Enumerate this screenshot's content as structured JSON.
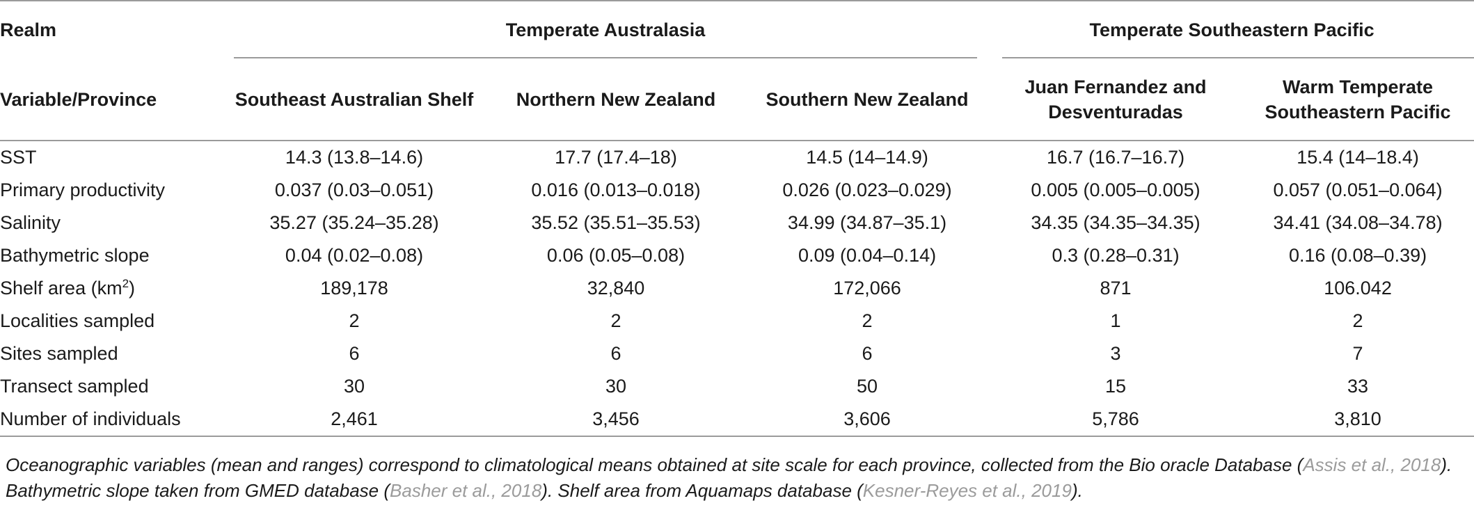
{
  "header": {
    "realm_label": "Realm",
    "variable_label": "Variable/Province",
    "realms": [
      {
        "name": "Temperate Australasia"
      },
      {
        "name": "Temperate Southeastern Pacific"
      }
    ],
    "provinces": [
      {
        "line1": "Southeast Australian Shelf",
        "line2": ""
      },
      {
        "line1": "Northern New Zealand",
        "line2": ""
      },
      {
        "line1": "Southern New Zealand",
        "line2": ""
      },
      {
        "line1": "Juan Fernandez and",
        "line2": "Desventuradas"
      },
      {
        "line1": "Warm Temperate",
        "line2": "Southeastern Pacific"
      }
    ]
  },
  "rows": [
    {
      "label": "SST",
      "sup": "",
      "values": [
        "14.3 (13.8–14.6)",
        "17.7 (17.4–18)",
        "14.5 (14–14.9)",
        "16.7 (16.7–16.7)",
        "15.4 (14–18.4)"
      ]
    },
    {
      "label": "Primary productivity",
      "sup": "",
      "values": [
        "0.037 (0.03–0.051)",
        "0.016 (0.013–0.018)",
        "0.026 (0.023–0.029)",
        "0.005 (0.005–0.005)",
        "0.057 (0.051–0.064)"
      ]
    },
    {
      "label": "Salinity",
      "sup": "",
      "values": [
        "35.27 (35.24–35.28)",
        "35.52 (35.51–35.53)",
        "34.99 (34.87–35.1)",
        "34.35 (34.35–34.35)",
        "34.41 (34.08–34.78)"
      ]
    },
    {
      "label": "Bathymetric slope",
      "sup": "",
      "values": [
        "0.04 (0.02–0.08)",
        "0.06 (0.05–0.08)",
        "0.09 (0.04–0.14)",
        "0.3 (0.28–0.31)",
        "0.16 (0.08–0.39)"
      ]
    },
    {
      "label": "Shelf area (km",
      "sup": "2",
      "label_suffix": ")",
      "values": [
        "189,178",
        "32,840",
        "172,066",
        "871",
        "106.042"
      ]
    },
    {
      "label": "Localities sampled",
      "sup": "",
      "values": [
        "2",
        "2",
        "2",
        "1",
        "2"
      ]
    },
    {
      "label": "Sites sampled",
      "sup": "",
      "values": [
        "6",
        "6",
        "6",
        "3",
        "7"
      ]
    },
    {
      "label": "Transect sampled",
      "sup": "",
      "values": [
        "30",
        "30",
        "50",
        "15",
        "33"
      ]
    },
    {
      "label": "Number of individuals",
      "sup": "",
      "values": [
        "2,461",
        "3,456",
        "3,606",
        "5,786",
        "3,810"
      ]
    }
  ],
  "caption": {
    "part1": "Oceanographic variables (mean and ranges) correspond to climatological means obtained at site scale for each province, collected from the Bio oracle Database (",
    "ref1": "Assis et al., 2018",
    "part2": "). Bathymetric slope taken from GMED database (",
    "ref2": "Basher et al., 2018",
    "part3": "). Shelf area from Aquamaps database (",
    "ref3": "Kesner-Reyes et al., 2019",
    "part4": ")."
  }
}
